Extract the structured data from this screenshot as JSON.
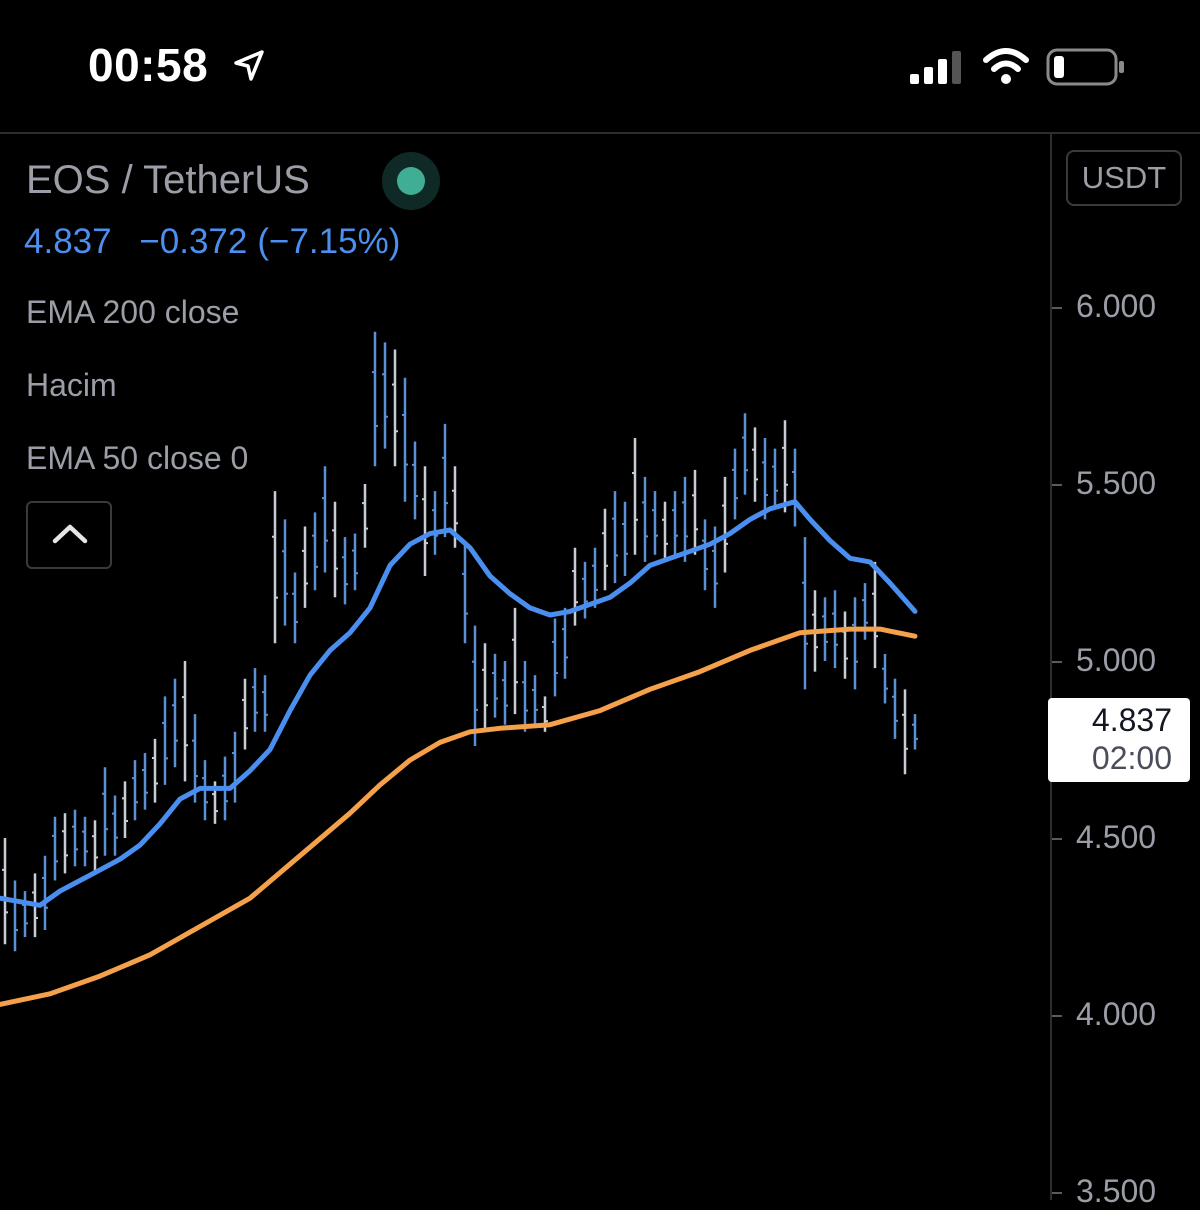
{
  "status_bar": {
    "time": "00:58"
  },
  "header": {
    "symbol": "EOS / TetherUS",
    "last_price": "4.837",
    "change": "−0.372",
    "change_pct": "(−7.15%)"
  },
  "indicators": [
    {
      "label": "EMA 200 close"
    },
    {
      "label": "Hacim"
    },
    {
      "label": "EMA 50 close 0"
    }
  ],
  "price_axis": {
    "currency": "USDT",
    "ticks": [
      "6.000",
      "5.500",
      "5.000",
      "4.500",
      "4.000",
      "3.500"
    ],
    "last_price_label": "4.837",
    "countdown": "02:00"
  },
  "colors": {
    "background": "#000000",
    "price_text": "#4c8fef",
    "ema50": "#4a8fef",
    "ema200": "#f5a04a",
    "bar_up": "#c8ccd4",
    "bar_down": "#5b8fd6",
    "live_dot": "#3fae94"
  },
  "chart_data": {
    "type": "line",
    "title": "EOS / TetherUS",
    "y_axis_unit": "USDT",
    "ylim": [
      3.5,
      6.0
    ],
    "ema_50": [
      [
        0,
        4.33
      ],
      [
        20,
        4.32
      ],
      [
        40,
        4.31
      ],
      [
        60,
        4.35
      ],
      [
        80,
        4.38
      ],
      [
        100,
        4.41
      ],
      [
        120,
        4.44
      ],
      [
        140,
        4.48
      ],
      [
        160,
        4.54
      ],
      [
        180,
        4.61
      ],
      [
        200,
        4.64
      ],
      [
        230,
        4.64
      ],
      [
        250,
        4.69
      ],
      [
        270,
        4.75
      ],
      [
        290,
        4.86
      ],
      [
        310,
        4.96
      ],
      [
        330,
        5.03
      ],
      [
        350,
        5.08
      ],
      [
        370,
        5.15
      ],
      [
        390,
        5.27
      ],
      [
        410,
        5.33
      ],
      [
        430,
        5.36
      ],
      [
        450,
        5.37
      ],
      [
        470,
        5.32
      ],
      [
        490,
        5.24
      ],
      [
        510,
        5.19
      ],
      [
        530,
        5.15
      ],
      [
        550,
        5.13
      ],
      [
        570,
        5.14
      ],
      [
        590,
        5.16
      ],
      [
        610,
        5.18
      ],
      [
        630,
        5.22
      ],
      [
        650,
        5.27
      ],
      [
        670,
        5.29
      ],
      [
        690,
        5.31
      ],
      [
        710,
        5.33
      ],
      [
        730,
        5.36
      ],
      [
        750,
        5.4
      ],
      [
        770,
        5.43
      ],
      [
        795,
        5.45
      ],
      [
        810,
        5.4
      ],
      [
        830,
        5.34
      ],
      [
        850,
        5.29
      ],
      [
        870,
        5.28
      ],
      [
        890,
        5.22
      ],
      [
        915,
        5.14
      ]
    ],
    "ema_200": [
      [
        0,
        4.03
      ],
      [
        50,
        4.06
      ],
      [
        100,
        4.11
      ],
      [
        150,
        4.17
      ],
      [
        200,
        4.25
      ],
      [
        250,
        4.33
      ],
      [
        300,
        4.45
      ],
      [
        350,
        4.57
      ],
      [
        380,
        4.65
      ],
      [
        410,
        4.72
      ],
      [
        440,
        4.77
      ],
      [
        470,
        4.8
      ],
      [
        500,
        4.81
      ],
      [
        550,
        4.82
      ],
      [
        600,
        4.86
      ],
      [
        650,
        4.92
      ],
      [
        700,
        4.97
      ],
      [
        750,
        5.03
      ],
      [
        800,
        5.08
      ],
      [
        850,
        5.09
      ],
      [
        880,
        5.09
      ],
      [
        915,
        5.07
      ]
    ],
    "price_bars": [
      [
        5,
        4.5,
        4.2
      ],
      [
        15,
        4.38,
        4.18
      ],
      [
        25,
        4.35,
        4.22
      ],
      [
        35,
        4.4,
        4.22
      ],
      [
        45,
        4.45,
        4.24
      ],
      [
        55,
        4.56,
        4.38
      ],
      [
        65,
        4.57,
        4.4
      ],
      [
        75,
        4.58,
        4.42
      ],
      [
        85,
        4.56,
        4.42
      ],
      [
        95,
        4.55,
        4.4
      ],
      [
        105,
        4.7,
        4.45
      ],
      [
        115,
        4.62,
        4.45
      ],
      [
        125,
        4.66,
        4.5
      ],
      [
        135,
        4.72,
        4.55
      ],
      [
        145,
        4.74,
        4.58
      ],
      [
        155,
        4.78,
        4.6
      ],
      [
        165,
        4.9,
        4.65
      ],
      [
        175,
        4.95,
        4.7
      ],
      [
        185,
        5.0,
        4.66
      ],
      [
        195,
        4.85,
        4.6
      ],
      [
        205,
        4.72,
        4.55
      ],
      [
        215,
        4.66,
        4.54
      ],
      [
        225,
        4.73,
        4.55
      ],
      [
        235,
        4.8,
        4.6
      ],
      [
        245,
        4.95,
        4.75
      ],
      [
        255,
        4.98,
        4.8
      ],
      [
        265,
        4.96,
        4.8
      ],
      [
        275,
        5.48,
        5.05
      ],
      [
        285,
        5.4,
        5.1
      ],
      [
        295,
        5.25,
        5.05
      ],
      [
        305,
        5.38,
        5.15
      ],
      [
        315,
        5.42,
        5.2
      ],
      [
        325,
        5.55,
        5.25
      ],
      [
        335,
        5.45,
        5.18
      ],
      [
        345,
        5.35,
        5.16
      ],
      [
        355,
        5.36,
        5.2
      ],
      [
        365,
        5.5,
        5.32
      ],
      [
        375,
        5.93,
        5.55
      ],
      [
        385,
        5.9,
        5.6
      ],
      [
        395,
        5.88,
        5.55
      ],
      [
        405,
        5.8,
        5.45
      ],
      [
        415,
        5.62,
        5.4
      ],
      [
        425,
        5.55,
        5.24
      ],
      [
        435,
        5.48,
        5.3
      ],
      [
        445,
        5.67,
        5.35
      ],
      [
        455,
        5.55,
        5.32
      ],
      [
        465,
        5.33,
        5.05
      ],
      [
        475,
        5.1,
        4.76
      ],
      [
        485,
        5.05,
        4.8
      ],
      [
        495,
        5.02,
        4.84
      ],
      [
        505,
        5.0,
        4.82
      ],
      [
        515,
        5.15,
        4.85
      ],
      [
        525,
        5.0,
        4.8
      ],
      [
        535,
        4.96,
        4.82
      ],
      [
        545,
        4.9,
        4.8
      ],
      [
        555,
        5.12,
        4.9
      ],
      [
        565,
        5.15,
        4.95
      ],
      [
        575,
        5.32,
        5.1
      ],
      [
        585,
        5.28,
        5.12
      ],
      [
        595,
        5.32,
        5.15
      ],
      [
        605,
        5.43,
        5.2
      ],
      [
        615,
        5.48,
        5.22
      ],
      [
        625,
        5.45,
        5.24
      ],
      [
        635,
        5.63,
        5.3
      ],
      [
        645,
        5.52,
        5.28
      ],
      [
        655,
        5.48,
        5.3
      ],
      [
        665,
        5.45,
        5.28
      ],
      [
        675,
        5.48,
        5.3
      ],
      [
        685,
        5.52,
        5.28
      ],
      [
        695,
        5.54,
        5.3
      ],
      [
        705,
        5.4,
        5.2
      ],
      [
        715,
        5.38,
        5.15
      ],
      [
        725,
        5.52,
        5.25
      ],
      [
        735,
        5.6,
        5.4
      ],
      [
        745,
        5.7,
        5.47
      ],
      [
        755,
        5.66,
        5.45
      ],
      [
        765,
        5.63,
        5.4
      ],
      [
        775,
        5.6,
        5.43
      ],
      [
        785,
        5.68,
        5.42
      ],
      [
        795,
        5.6,
        5.38
      ],
      [
        805,
        5.35,
        4.92
      ],
      [
        815,
        5.2,
        4.97
      ],
      [
        825,
        5.18,
        5.0
      ],
      [
        835,
        5.2,
        4.98
      ],
      [
        845,
        5.14,
        4.95
      ],
      [
        855,
        5.18,
        4.92
      ],
      [
        865,
        5.22,
        5.06
      ],
      [
        875,
        5.28,
        4.98
      ],
      [
        885,
        5.02,
        4.88
      ],
      [
        895,
        4.95,
        4.78
      ],
      [
        905,
        4.92,
        4.68
      ],
      [
        915,
        4.85,
        4.75
      ]
    ]
  }
}
